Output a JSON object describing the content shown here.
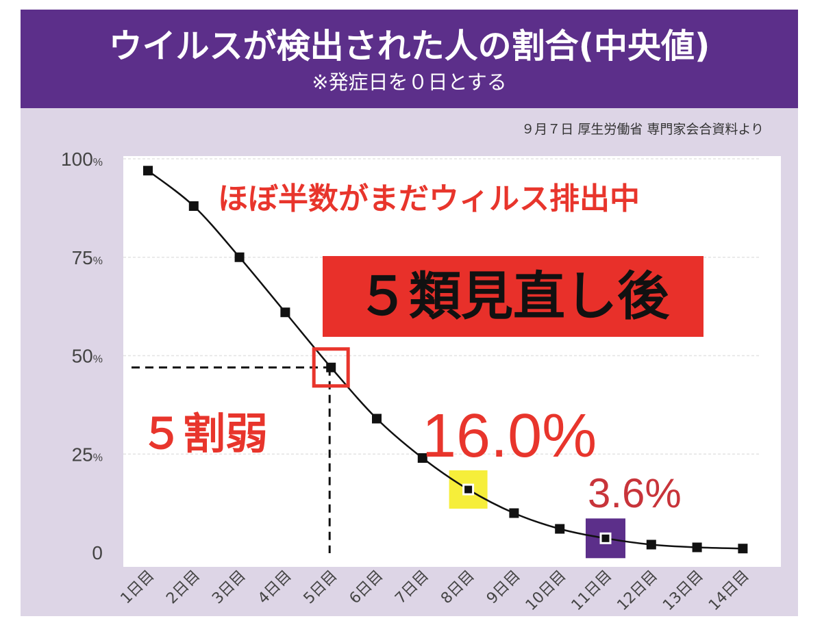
{
  "header": {
    "title": "ウイルスが検出された人の割合(中央値)",
    "subtitle": "※発症日を０日とする"
  },
  "source_note": "９月７日 厚生労働省 専門家会合資料より",
  "annotations": {
    "headline": "ほぼ半数がまだウィルス排出中",
    "banner": "５類見直し後",
    "half_label": "５割弱",
    "day8_label": "16.0%",
    "day11_label": "3.6%"
  },
  "colors": {
    "header_purple": "#5c2f8a",
    "card_lavender": "#ddd5e6",
    "accent_red": "#e8352c",
    "label_dark_red": "#c8343a",
    "highlight_yellow": "#f6ee3a",
    "highlight_purple": "#5c2f8a"
  },
  "chart_data": {
    "type": "line",
    "categories": [
      "1日目",
      "2日目",
      "3日目",
      "4日目",
      "5日目",
      "6日目",
      "7日目",
      "8日目",
      "9日目",
      "10日目",
      "11日目",
      "12日目",
      "13日目",
      "14日目"
    ],
    "values": [
      97,
      88,
      75,
      61,
      47,
      34,
      24,
      16.0,
      10,
      6,
      3.6,
      2,
      1.3,
      1
    ],
    "ylim": [
      0,
      100
    ],
    "yticks": [
      {
        "value": 0,
        "label": "0",
        "unit": ""
      },
      {
        "value": 25,
        "label": "25",
        "unit": "%"
      },
      {
        "value": 50,
        "label": "50",
        "unit": "%"
      },
      {
        "value": 75,
        "label": "75",
        "unit": "%"
      },
      {
        "value": 100,
        "label": "100",
        "unit": "%"
      }
    ],
    "grid": true,
    "highlights": [
      {
        "index": 4,
        "style": "red-outline",
        "reference_lines": true
      },
      {
        "index": 7,
        "style": "yellow-box"
      },
      {
        "index": 10,
        "style": "purple-box"
      }
    ]
  }
}
